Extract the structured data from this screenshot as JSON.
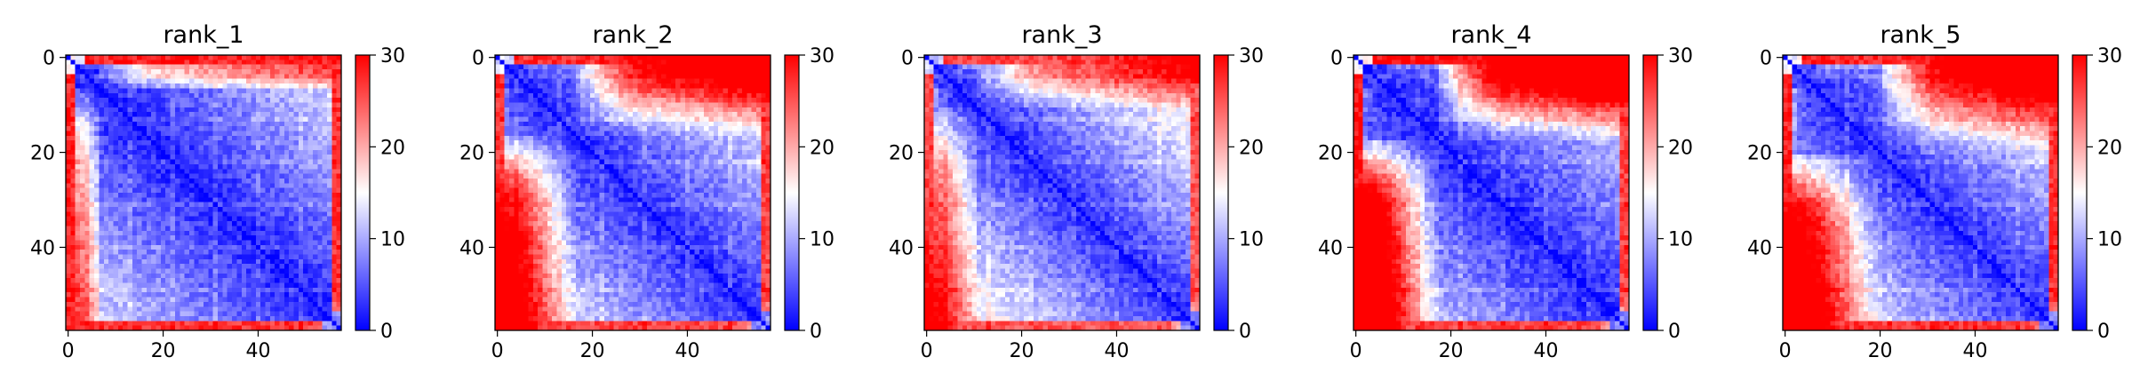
{
  "chart_data": {
    "type": "heatmap",
    "matrix_size": 58,
    "colormap": "bwr",
    "colormap_colors": [
      "#0000ff",
      "#ffffff",
      "#ff0000"
    ],
    "vmin": 0,
    "vmax": 30,
    "xlim": [
      0,
      57
    ],
    "ylim": [
      57,
      0
    ],
    "x_ticks": [
      0,
      20,
      40
    ],
    "y_ticks": [
      0,
      20,
      40
    ],
    "colorbar_ticks": [
      0,
      10,
      20,
      30
    ],
    "panels": [
      {
        "title": "rank_1",
        "block_boundary": 7,
        "near_diag_dist": 2.0,
        "near_diag_slope": 0.22,
        "far_dist": 29,
        "block_contrast": 0.55,
        "top_edge_dist": 28,
        "bottom_edge_dist": 27,
        "left_edge_dist": 10
      },
      {
        "title": "rank_2",
        "block_boundary": 17,
        "near_diag_dist": 2.5,
        "near_diag_slope": 0.26,
        "far_dist": 26,
        "block_contrast": 0.95,
        "top_edge_dist": 27,
        "bottom_edge_dist": 26,
        "left_edge_dist": 12
      },
      {
        "title": "rank_3",
        "block_boundary": 11,
        "near_diag_dist": 2.5,
        "near_diag_slope": 0.3,
        "far_dist": 24,
        "block_contrast": 0.7,
        "top_edge_dist": 26,
        "bottom_edge_dist": 25,
        "left_edge_dist": 14
      },
      {
        "title": "rank_4",
        "block_boundary": 18,
        "near_diag_dist": 2.0,
        "near_diag_slope": 0.24,
        "far_dist": 30,
        "block_contrast": 1.05,
        "top_edge_dist": 29,
        "bottom_edge_dist": 26,
        "left_edge_dist": 12
      },
      {
        "title": "rank_5",
        "block_boundary": 21,
        "near_diag_dist": 2.5,
        "near_diag_slope": 0.28,
        "far_dist": 28,
        "block_contrast": 0.9,
        "top_edge_dist": 28,
        "bottom_edge_dist": 27,
        "left_edge_dist": 16
      }
    ]
  }
}
